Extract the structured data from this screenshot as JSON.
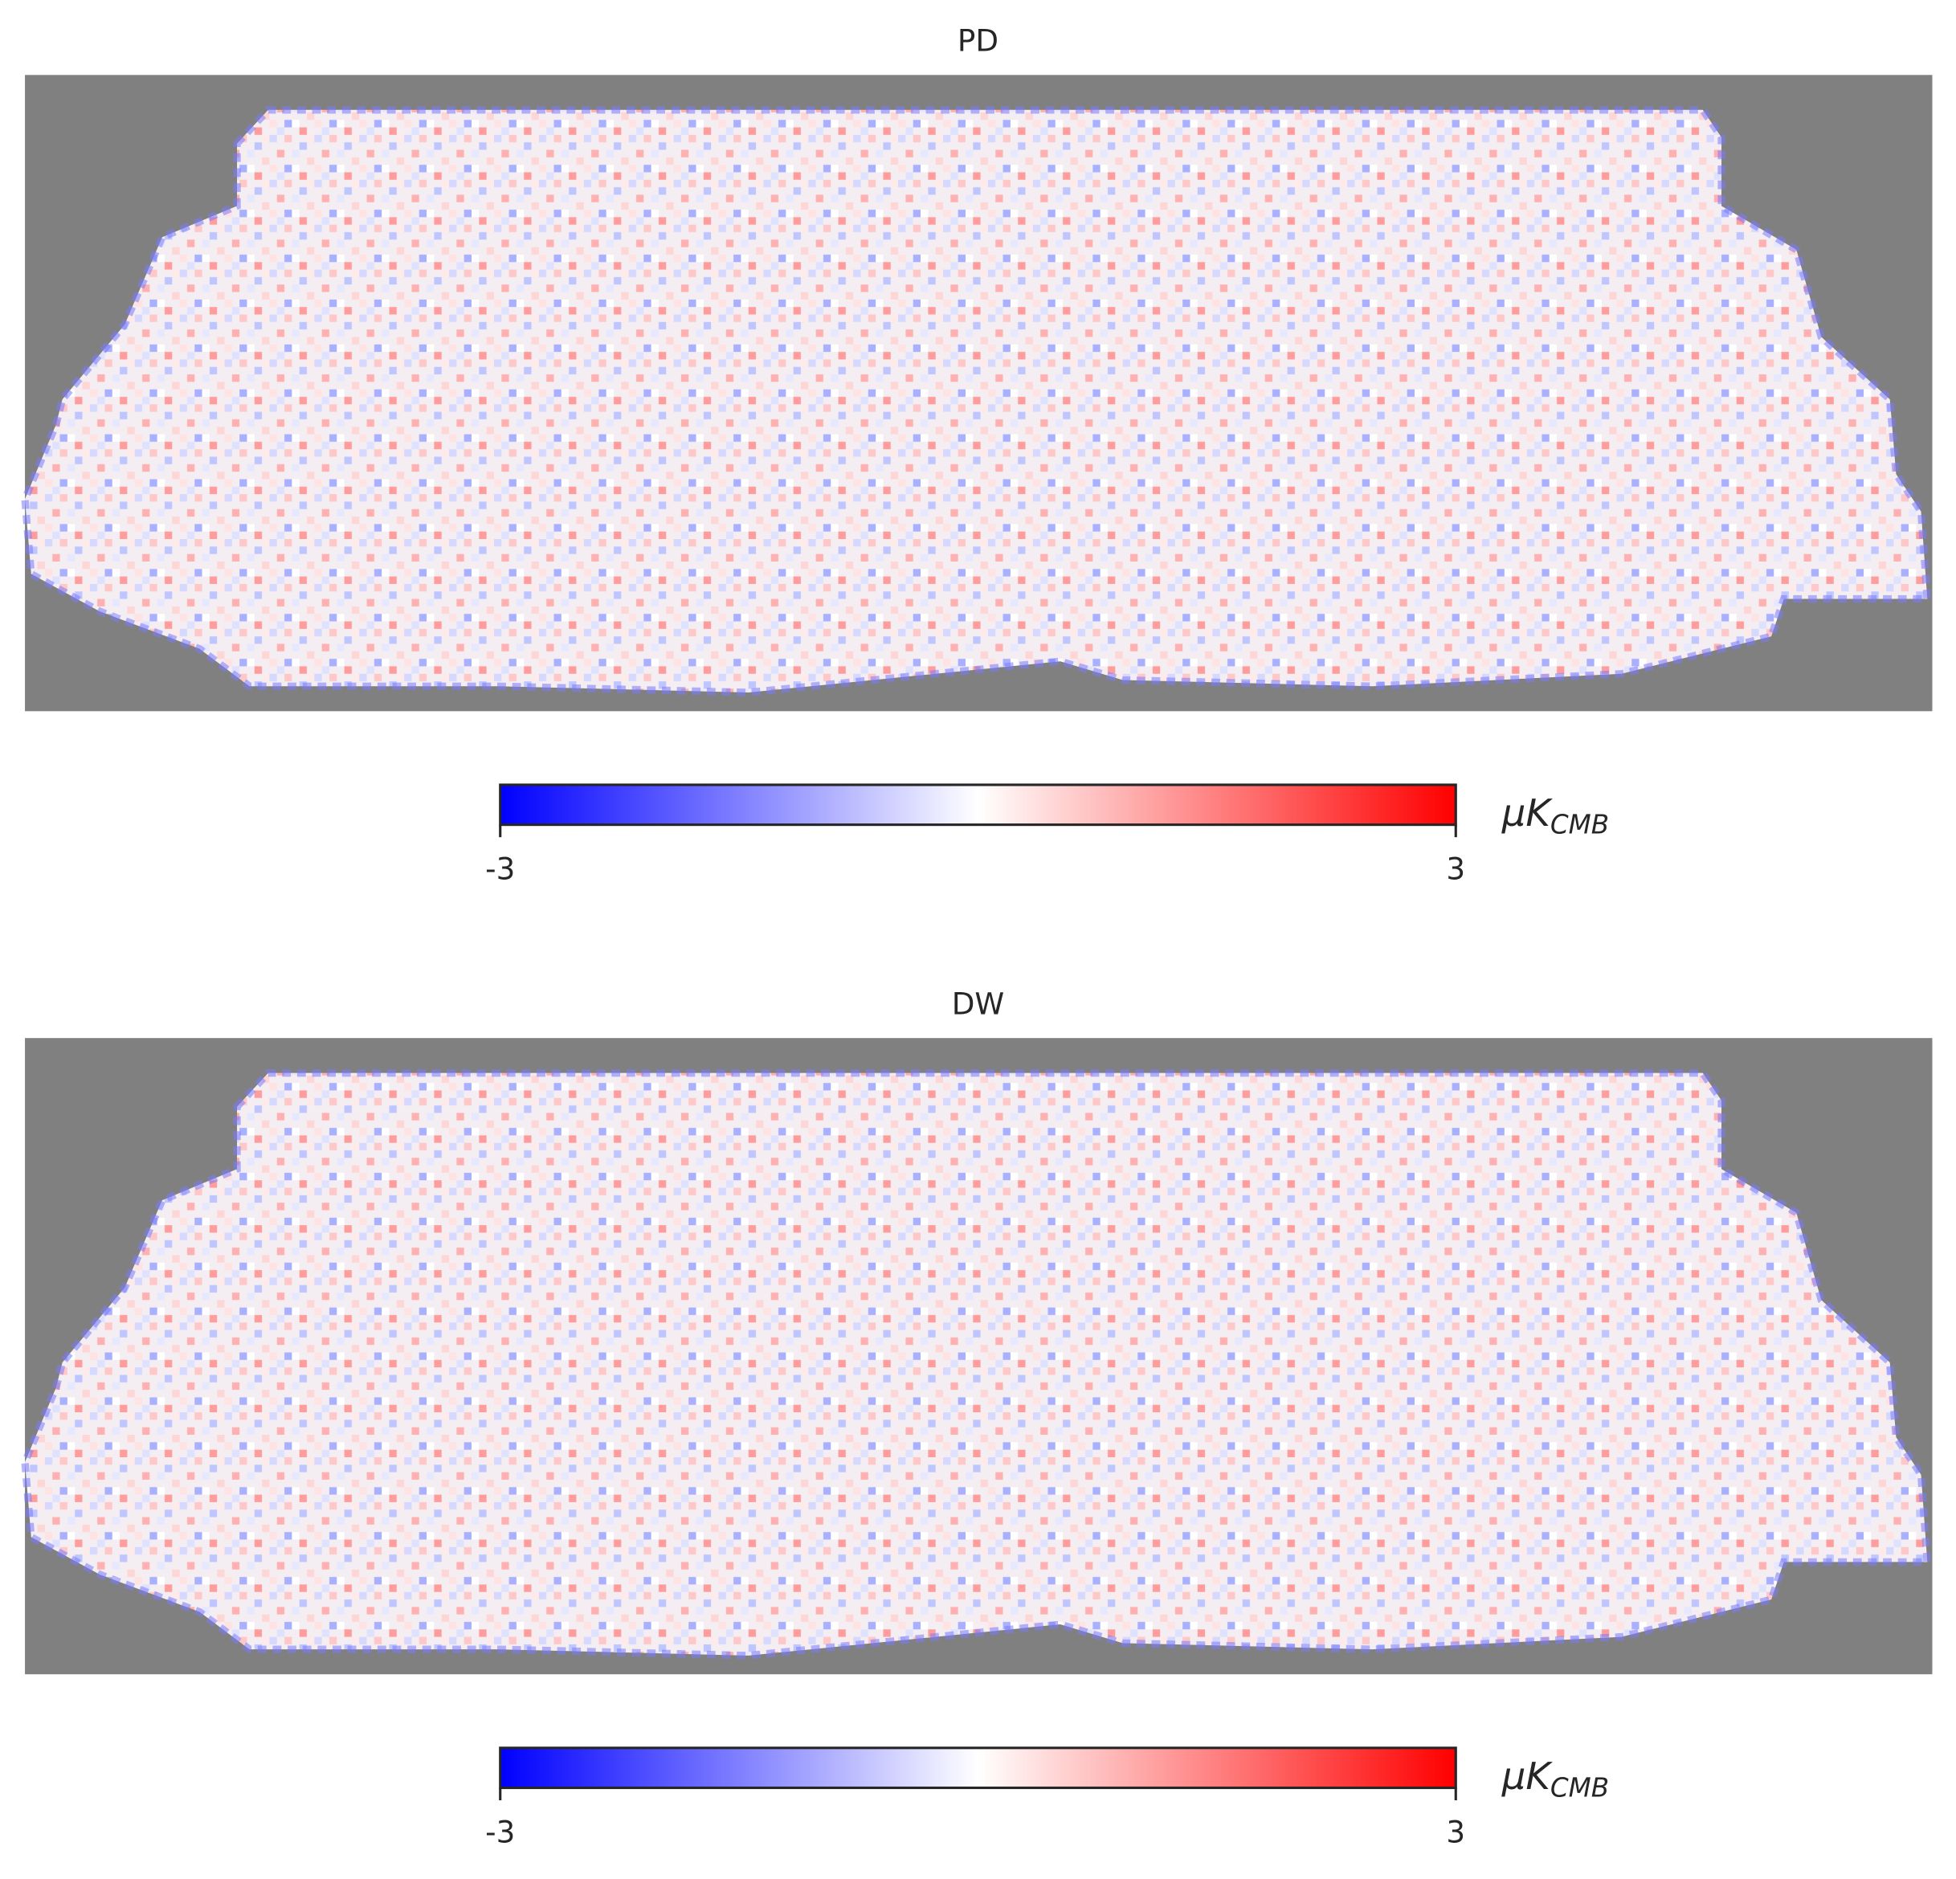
{
  "chart_data": [
    {
      "type": "healpix-map",
      "title": "PD",
      "colorbar": {
        "cmap": [
          "#0000ff",
          "#ffffff",
          "#ff0000"
        ],
        "vlim": [
          -3,
          3
        ],
        "ticks": [
          -3,
          3
        ],
        "unit": "μK",
        "unit_subscript": "CMB"
      },
      "background": "#808080"
    },
    {
      "type": "healpix-map",
      "title": "DW",
      "colorbar": {
        "cmap": [
          "#0000ff",
          "#ffffff",
          "#ff0000"
        ],
        "vlim": [
          -3,
          3
        ],
        "ticks": [
          -3,
          3
        ],
        "unit": "μK",
        "unit_subscript": "CMB"
      },
      "background": "#808080"
    }
  ]
}
